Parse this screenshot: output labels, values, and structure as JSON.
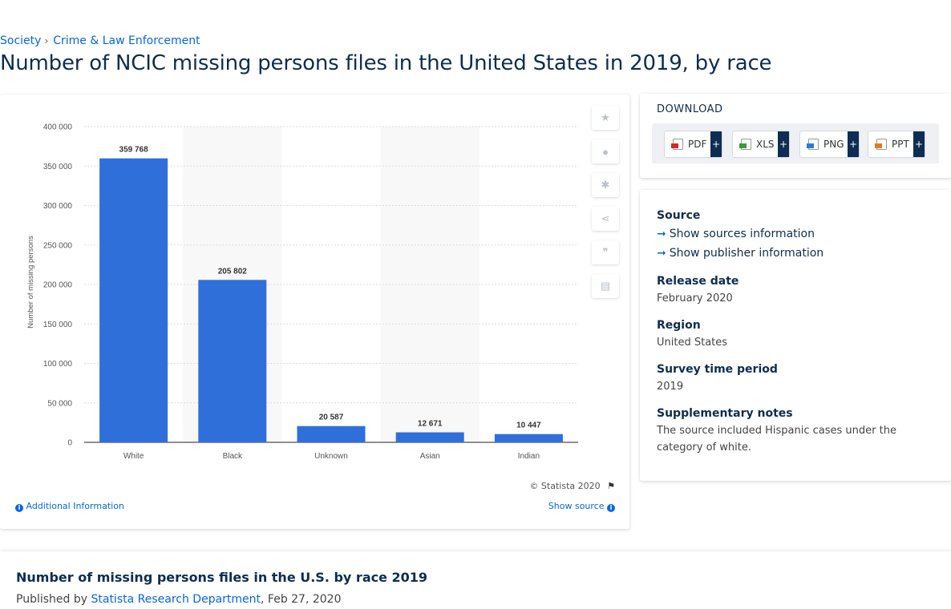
{
  "breadcrumb": {
    "items": [
      "Society",
      "Crime & Law Enforcement"
    ],
    "separator": "›"
  },
  "page_title": "Number of NCIC missing persons files in the United States in 2019, by race",
  "chart_data": {
    "type": "bar",
    "categories": [
      "White",
      "Black",
      "Unknown",
      "Asian",
      "Indian"
    ],
    "values": [
      359768,
      205802,
      20587,
      12671,
      10447
    ],
    "value_labels": [
      "359 768",
      "205 802",
      "20 587",
      "12 671",
      "10 447"
    ],
    "title": "",
    "xlabel": "",
    "ylabel": "Number of missing persons",
    "ylim": [
      0,
      400000
    ],
    "yticks": [
      0,
      50000,
      100000,
      150000,
      200000,
      250000,
      300000,
      350000,
      400000
    ],
    "ytick_labels": [
      "0",
      "50 000",
      "100 000",
      "150 000",
      "200 000",
      "250 000",
      "300 000",
      "350 000",
      "400 000"
    ],
    "bar_color": "#2f6fd9",
    "alt_band_color": "#f8f8f8",
    "grid": true,
    "legend": "none"
  },
  "chart_footer": {
    "copyright": "© Statista 2020",
    "additional_info": "Additional Information",
    "show_source": "Show source"
  },
  "tools": [
    "star-icon",
    "bell-icon",
    "gear-icon",
    "share-icon",
    "quote-icon",
    "print-icon"
  ],
  "download": {
    "heading": "DOWNLOAD",
    "buttons": [
      {
        "label": "PDF",
        "color": "#d9262b"
      },
      {
        "label": "XLS",
        "color": "#3a9b3a"
      },
      {
        "label": "PNG",
        "color": "#2a7bd6"
      },
      {
        "label": "PPT",
        "color": "#e07b24"
      }
    ],
    "plus": "+"
  },
  "meta": {
    "source_label": "Source",
    "show_sources": "Show sources information",
    "show_publisher": "Show publisher information",
    "release_label": "Release date",
    "release_value": "February 2020",
    "region_label": "Region",
    "region_value": "United States",
    "survey_label": "Survey time period",
    "survey_value": "2019",
    "notes_label": "Supplementary notes",
    "notes_value": "The source included Hispanic cases under the category of white."
  },
  "bottom": {
    "title": "Number of missing persons files in the U.S. by race 2019",
    "published_prefix": "Published by",
    "publisher": "Statista Research Department",
    "date": ", Feb 27, 2020"
  },
  "colors": {
    "accent": "#0666e5",
    "navy": "#0d2d52"
  }
}
